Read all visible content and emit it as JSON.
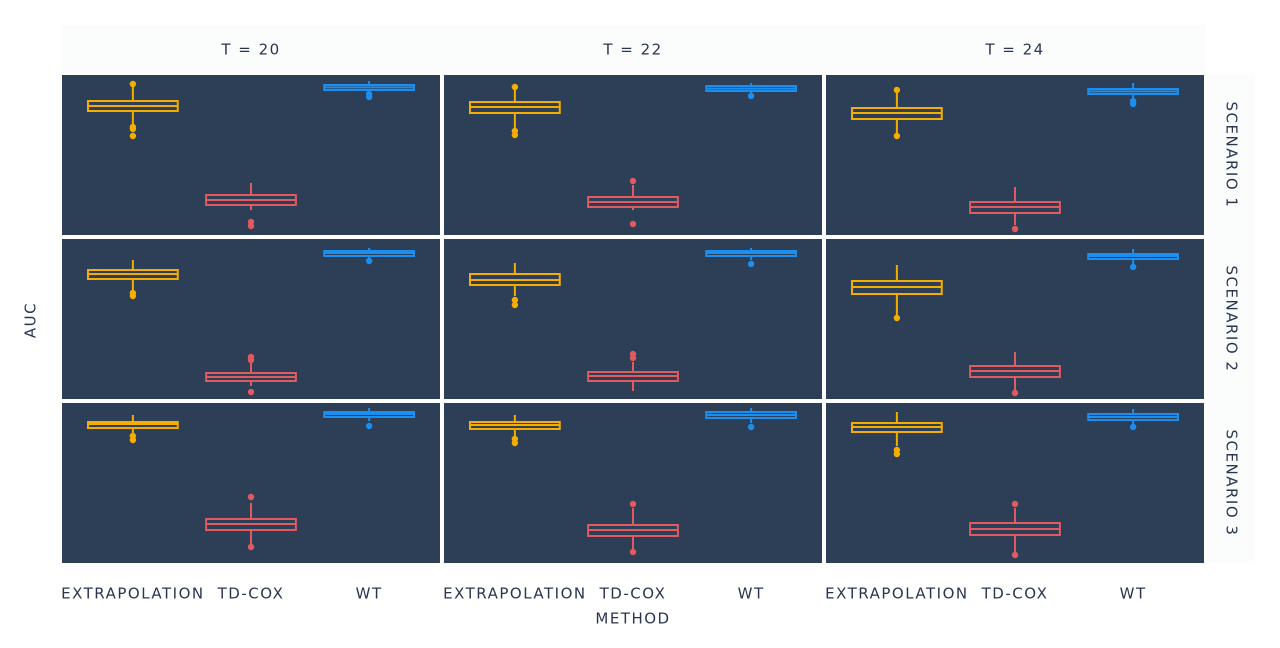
{
  "chart_data": {
    "type": "boxplot",
    "xlabel": "METHOD",
    "ylabel": "AUC",
    "columns": [
      "T = 20",
      "T = 22",
      "T = 24"
    ],
    "rows": [
      "SCENARIO 1",
      "SCENARIO 2",
      "SCENARIO 3"
    ],
    "categories": [
      "EXTRAPOLATION",
      "TD-COX",
      "WT"
    ],
    "colors": [
      "#f5ad00",
      "#e05a5f",
      "#1a8ff0"
    ],
    "ylim": [
      0.6,
      1.0
    ],
    "panels": [
      [
        [
          {
            "whisker_low": 0.875,
            "q1": 0.91,
            "median": 0.9225,
            "q3": 0.935,
            "whisker_high": 0.9725,
            "outliers": [
              0.9775,
              0.87,
              0.865,
              0.8475
            ]
          },
          {
            "whisker_low": 0.6625,
            "q1": 0.675,
            "median": 0.6875,
            "q3": 0.7,
            "whisker_high": 0.73,
            "outliers": [
              0.6325,
              0.6225
            ]
          },
          {
            "whisker_low": 0.955,
            "q1": 0.9625,
            "median": 0.969,
            "q3": 0.975,
            "whisker_high": 0.985,
            "outliers": [
              0.9525,
              0.945
            ]
          }
        ],
        [
          {
            "whisker_low": 0.8675,
            "q1": 0.905,
            "median": 0.92,
            "q3": 0.9325,
            "whisker_high": 0.9625,
            "outliers": [
              0.97,
              0.86,
              0.85
            ]
          },
          {
            "whisker_low": 0.6625,
            "q1": 0.67,
            "median": 0.6825,
            "q3": 0.695,
            "whisker_high": 0.725,
            "outliers": [
              0.735,
              0.6275
            ]
          },
          {
            "whisker_low": 0.955,
            "q1": 0.96,
            "median": 0.966,
            "q3": 0.9725,
            "whisker_high": 0.98,
            "outliers": [
              0.9475
            ]
          }
        ],
        [
          {
            "whisker_low": 0.855,
            "q1": 0.89,
            "median": 0.905,
            "q3": 0.9175,
            "whisker_high": 0.955,
            "outliers": [
              0.9625,
              0.8475
            ]
          },
          {
            "whisker_low": 0.625,
            "q1": 0.655,
            "median": 0.67,
            "q3": 0.6825,
            "whisker_high": 0.72,
            "outliers": [
              0.615
            ]
          },
          {
            "whisker_low": 0.94,
            "q1": 0.9525,
            "median": 0.959,
            "q3": 0.965,
            "whisker_high": 0.98,
            "outliers": [
              0.935,
              0.9275
            ]
          }
        ]
      ],
      [
        [
          {
            "whisker_low": 0.8725,
            "q1": 0.9,
            "median": 0.9125,
            "q3": 0.9225,
            "whisker_high": 0.9475,
            "outliers": [
              0.865,
              0.8575
            ]
          },
          {
            "whisker_low": 0.6325,
            "q1": 0.645,
            "median": 0.655,
            "q3": 0.665,
            "whisker_high": 0.6925,
            "outliers": [
              0.705,
              0.6975,
              0.6175
            ]
          },
          {
            "whisker_low": 0.95,
            "q1": 0.9575,
            "median": 0.965,
            "q3": 0.97,
            "whisker_high": 0.9775,
            "outliers": [
              0.945
            ]
          }
        ],
        [
          {
            "whisker_low": 0.8575,
            "q1": 0.885,
            "median": 0.8975,
            "q3": 0.9125,
            "whisker_high": 0.94,
            "outliers": [
              0.8475,
              0.835
            ]
          },
          {
            "whisker_low": 0.62,
            "q1": 0.645,
            "median": 0.6575,
            "q3": 0.6675,
            "whisker_high": 0.6925,
            "outliers": [
              0.7125,
              0.7025
            ]
          },
          {
            "whisker_low": 0.9475,
            "q1": 0.9575,
            "median": 0.965,
            "q3": 0.97,
            "whisker_high": 0.9775,
            "outliers": [
              0.9375
            ]
          }
        ],
        [
          {
            "whisker_low": 0.81,
            "q1": 0.8625,
            "median": 0.88,
            "q3": 0.895,
            "whisker_high": 0.935,
            "outliers": [
              0.8025
            ]
          },
          {
            "whisker_low": 0.6225,
            "q1": 0.655,
            "median": 0.67,
            "q3": 0.6825,
            "whisker_high": 0.7175,
            "outliers": [
              0.615
            ]
          },
          {
            "whisker_low": 0.9375,
            "q1": 0.95,
            "median": 0.9575,
            "q3": 0.9625,
            "whisker_high": 0.975,
            "outliers": [
              0.93
            ]
          }
        ]
      ],
      [
        [
          {
            "whisker_low": 0.925,
            "q1": 0.9375,
            "median": 0.9475,
            "q3": 0.9525,
            "whisker_high": 0.97,
            "outliers": [
              0.9175,
              0.9075
            ]
          },
          {
            "whisker_low": 0.6475,
            "q1": 0.6825,
            "median": 0.6975,
            "q3": 0.71,
            "whisker_high": 0.75,
            "outliers": [
              0.765,
              0.64
            ]
          },
          {
            "whisker_low": 0.955,
            "q1": 0.965,
            "median": 0.9725,
            "q3": 0.9775,
            "whisker_high": 0.9875,
            "outliers": [
              0.9425
            ]
          }
        ],
        [
          {
            "whisker_low": 0.9175,
            "q1": 0.935,
            "median": 0.945,
            "q3": 0.9525,
            "whisker_high": 0.97,
            "outliers": [
              0.91,
              0.9
            ]
          },
          {
            "whisker_low": 0.635,
            "q1": 0.6675,
            "median": 0.6825,
            "q3": 0.695,
            "whisker_high": 0.7375,
            "outliers": [
              0.7475,
              0.6275
            ]
          },
          {
            "whisker_low": 0.95,
            "q1": 0.9625,
            "median": 0.97,
            "q3": 0.9775,
            "whisker_high": 0.9875,
            "outliers": [
              0.94
            ]
          }
        ],
        [
          {
            "whisker_low": 0.8925,
            "q1": 0.9275,
            "median": 0.94,
            "q3": 0.95,
            "whisker_high": 0.9775,
            "outliers": [
              0.8825,
              0.8725
            ]
          },
          {
            "whisker_low": 0.6275,
            "q1": 0.67,
            "median": 0.685,
            "q3": 0.7,
            "whisker_high": 0.7375,
            "outliers": [
              0.7475,
              0.62
            ]
          },
          {
            "whisker_low": 0.9475,
            "q1": 0.9575,
            "median": 0.965,
            "q3": 0.9725,
            "whisker_high": 0.985,
            "outliers": [
              0.94
            ]
          }
        ]
      ]
    ]
  }
}
